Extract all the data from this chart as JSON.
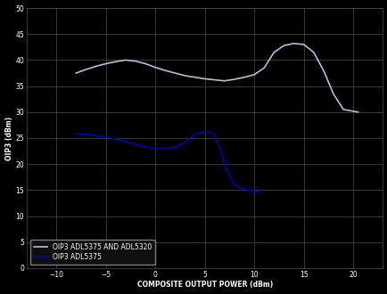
{
  "title": "",
  "xlabel": "COMPOSITE OUTPUT POWER (dBm)",
  "ylabel": "OIP3 (dBm)",
  "xlim": [
    -13,
    23
  ],
  "ylim": [
    0,
    50
  ],
  "xticks": [
    -10,
    -5,
    0,
    5,
    10,
    15,
    20
  ],
  "yticks": [
    0,
    5,
    10,
    15,
    20,
    25,
    30,
    35,
    40,
    45,
    50
  ],
  "background_color": "#000000",
  "grid_color": "#4d4d4d",
  "composite_color": "#c8b4d8",
  "adl5375_color": "#0000bb",
  "legend_labels": [
    "OIP3 ADL5375 AND ADL5320",
    "OIP3 ADL5375"
  ],
  "composite_x": [
    -8.0,
    -7.0,
    -6.0,
    -5.0,
    -4.0,
    -3.0,
    -2.0,
    -1.0,
    0.0,
    1.0,
    2.0,
    3.0,
    4.0,
    5.0,
    6.0,
    7.0,
    8.0,
    9.0,
    10.0,
    11.0,
    12.0,
    13.0,
    14.0,
    15.0,
    16.0,
    17.0,
    18.0,
    19.0,
    20.5
  ],
  "composite_y": [
    37.5,
    38.2,
    38.8,
    39.3,
    39.7,
    40.0,
    39.8,
    39.3,
    38.6,
    38.0,
    37.5,
    37.0,
    36.7,
    36.4,
    36.2,
    36.0,
    36.3,
    36.7,
    37.2,
    38.5,
    41.5,
    42.8,
    43.2,
    43.0,
    41.5,
    38.0,
    33.5,
    30.5,
    30.0
  ],
  "adl5375_x": [
    -8.0,
    -7.0,
    -6.0,
    -5.0,
    -4.0,
    -3.0,
    -2.0,
    -1.0,
    0.0,
    1.0,
    2.0,
    3.0,
    4.0,
    5.0,
    5.5,
    6.0,
    6.5,
    7.0,
    7.5,
    8.0,
    9.0,
    10.0,
    10.5
  ],
  "adl5375_y": [
    25.8,
    25.8,
    25.5,
    25.2,
    24.8,
    24.3,
    23.8,
    23.3,
    23.0,
    23.0,
    23.3,
    24.2,
    25.8,
    26.3,
    26.2,
    25.5,
    23.0,
    20.0,
    17.5,
    16.0,
    15.2,
    14.8,
    14.7
  ],
  "fig_width": 4.35,
  "fig_height": 3.3,
  "dpi": 100
}
